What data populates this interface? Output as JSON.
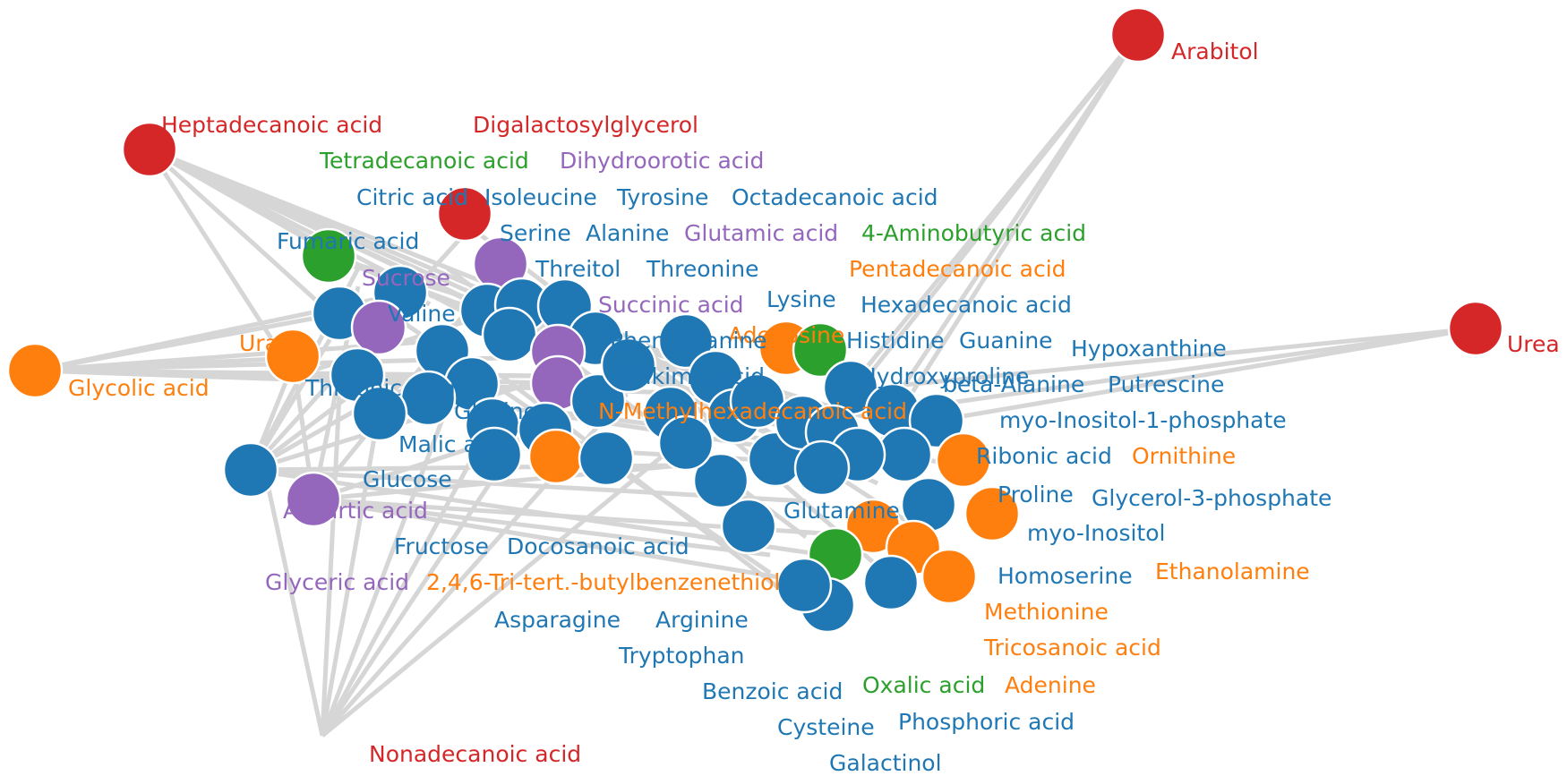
{
  "colors": {
    "blue": "#1f77b4",
    "orange": "#ff7f0e",
    "green": "#2ca02c",
    "red": "#d62728",
    "purple": "#9467bd",
    "edge": "#d6d6d6"
  },
  "labels": [
    {
      "text": "Arabitol",
      "group": "red"
    },
    {
      "text": "Heptadecanoic acid",
      "group": "red"
    },
    {
      "text": "Digalactosylglycerol",
      "group": "red"
    },
    {
      "text": "Tetradecanoic acid",
      "group": "green"
    },
    {
      "text": "Dihydroorotic acid",
      "group": "purple"
    },
    {
      "text": "Citric acid",
      "group": "blue"
    },
    {
      "text": "Isoleucine",
      "group": "blue"
    },
    {
      "text": "Tyrosine",
      "group": "blue"
    },
    {
      "text": "Octadecanoic acid",
      "group": "blue"
    },
    {
      "text": "Fumaric acid",
      "group": "blue"
    },
    {
      "text": "Serine",
      "group": "blue"
    },
    {
      "text": "Alanine",
      "group": "blue"
    },
    {
      "text": "Glutamic acid",
      "group": "purple"
    },
    {
      "text": "4-Aminobutyric acid",
      "group": "green"
    },
    {
      "text": "Sucrose",
      "group": "purple"
    },
    {
      "text": "Threitol",
      "group": "blue"
    },
    {
      "text": "Threonine",
      "group": "blue"
    },
    {
      "text": "Pentadecanoic acid",
      "group": "orange"
    },
    {
      "text": "Lysine",
      "group": "blue"
    },
    {
      "text": "Hexadecanoic acid",
      "group": "blue"
    },
    {
      "text": "Succinic acid",
      "group": "purple"
    },
    {
      "text": "Valine",
      "group": "blue"
    },
    {
      "text": "Adenosine",
      "group": "orange"
    },
    {
      "text": "Urea",
      "group": "red"
    },
    {
      "text": "Histidine",
      "group": "blue"
    },
    {
      "text": "Guanine",
      "group": "blue"
    },
    {
      "text": "Hypoxanthine",
      "group": "blue"
    },
    {
      "text": "Uracil",
      "group": "orange"
    },
    {
      "text": "Phenylalanine",
      "group": "blue"
    },
    {
      "text": "Hydroxyproline",
      "group": "blue"
    },
    {
      "text": "beta-Alanine",
      "group": "blue"
    },
    {
      "text": "Putrescine",
      "group": "blue"
    },
    {
      "text": "Glycolic acid",
      "group": "orange"
    },
    {
      "text": "Threonic acid",
      "group": "blue"
    },
    {
      "text": "Shikimic acid",
      "group": "blue"
    },
    {
      "text": "myo-Inositol-1-phosphate",
      "group": "blue"
    },
    {
      "text": "Glycine",
      "group": "blue"
    },
    {
      "text": "N-Methylhexadecanoic acid",
      "group": "orange"
    },
    {
      "text": "Malic acid",
      "group": "blue"
    },
    {
      "text": "Ribonic acid",
      "group": "blue"
    },
    {
      "text": "Ornithine",
      "group": "orange"
    },
    {
      "text": "Glucose",
      "group": "blue"
    },
    {
      "text": "Proline",
      "group": "blue"
    },
    {
      "text": "Glycerol-3-phosphate",
      "group": "blue"
    },
    {
      "text": "Aspartic acid",
      "group": "purple"
    },
    {
      "text": "myo-Inositol",
      "group": "blue"
    },
    {
      "text": "Glutamine",
      "group": "blue"
    },
    {
      "text": "Fructose",
      "group": "blue"
    },
    {
      "text": "Docosanoic acid",
      "group": "blue"
    },
    {
      "text": "Homoserine",
      "group": "blue"
    },
    {
      "text": "Ethanolamine",
      "group": "orange"
    },
    {
      "text": "Glyceric acid",
      "group": "purple"
    },
    {
      "text": "2,4,6-Tri-tert.-butylbenzenethiol",
      "group": "orange"
    },
    {
      "text": "Methionine",
      "group": "orange"
    },
    {
      "text": "Asparagine",
      "group": "blue"
    },
    {
      "text": "Arginine",
      "group": "blue"
    },
    {
      "text": "Tricosanoic acid",
      "group": "orange"
    },
    {
      "text": "Tryptophan",
      "group": "blue"
    },
    {
      "text": "Benzoic acid",
      "group": "blue"
    },
    {
      "text": "Oxalic acid",
      "group": "green"
    },
    {
      "text": "Adenine",
      "group": "orange"
    },
    {
      "text": "Cysteine",
      "group": "blue"
    },
    {
      "text": "Phosphoric acid",
      "group": "blue"
    },
    {
      "text": "Galactinol",
      "group": "blue"
    },
    {
      "text": "Nonadecanoic acid",
      "group": "red"
    }
  ]
}
